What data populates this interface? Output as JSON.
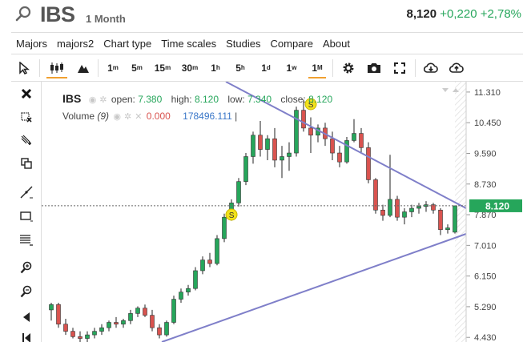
{
  "header": {
    "symbol": "IBS",
    "period": "1 Month",
    "last_price": "8,120",
    "change": "+0,220",
    "change_pct": "+2,78%",
    "up_color": "#26a65b",
    "down_color": "#d9534f"
  },
  "menu": [
    "Majors",
    "majors2",
    "Chart type",
    "Time scales",
    "Studies",
    "Compare",
    "About"
  ],
  "toolbar": {
    "cursor_icon": "cursor-arrow-icon",
    "chart_type_icons": [
      "candlestick-icon",
      "mountain-icon"
    ],
    "timeframes": [
      {
        "base": "1",
        "sup": "m"
      },
      {
        "base": "5",
        "sup": "m"
      },
      {
        "base": "15",
        "sup": "m"
      },
      {
        "base": "30",
        "sup": "m"
      },
      {
        "base": "1",
        "sup": "h"
      },
      {
        "base": "5",
        "sup": "h"
      },
      {
        "base": "1",
        "sup": "d"
      },
      {
        "base": "1",
        "sup": "w"
      },
      {
        "base": "1",
        "sup": "M"
      }
    ],
    "active_timeframe": "1M",
    "right_icons": [
      "settings-gear-icon",
      "camera-icon",
      "fullscreen-icon",
      "download-icon",
      "upload-icon"
    ]
  },
  "left_tools": [
    "close-x-icon",
    "erase-drawings-icon",
    "trend-tools-icon",
    "copy-icon",
    "line-tool-icon",
    "rectangle-tool-icon",
    "horizontal-lines-icon",
    "zoom-in-icon",
    "zoom-out-icon",
    "scroll-left-icon",
    "scroll-left-end-icon"
  ],
  "legend": {
    "symbol": "IBS",
    "open_label": "open:",
    "open": "7.380",
    "high_label": "high:",
    "high": "8.120",
    "low_label": "low:",
    "low": "7.340",
    "close_label": "close:",
    "close": "8.120",
    "volume_label": "Volume",
    "volume_period": "(9)",
    "volume_value0": "0.000",
    "volume_value1": "178496.111",
    "separator": "|"
  },
  "chart_data": {
    "type": "candlestick",
    "price_axis_ticks": [
      "11.310",
      "10.450",
      "9.590",
      "8.730",
      "7.870",
      "7.010",
      "6.150",
      "5.290",
      "4.430"
    ],
    "current_price_label": "8.120",
    "current_price": 8.12,
    "ylim": [
      4.3,
      11.6
    ],
    "marker_label": "S",
    "candles": [
      {
        "o": 5.2,
        "h": 5.4,
        "l": 4.9,
        "c": 5.35
      },
      {
        "o": 5.35,
        "h": 5.4,
        "l": 4.7,
        "c": 4.8
      },
      {
        "o": 4.8,
        "h": 4.95,
        "l": 4.5,
        "c": 4.6
      },
      {
        "o": 4.6,
        "h": 4.7,
        "l": 4.4,
        "c": 4.45
      },
      {
        "o": 4.45,
        "h": 4.6,
        "l": 4.3,
        "c": 4.4
      },
      {
        "o": 4.4,
        "h": 4.6,
        "l": 4.3,
        "c": 4.5
      },
      {
        "o": 4.5,
        "h": 4.7,
        "l": 4.4,
        "c": 4.6
      },
      {
        "o": 4.6,
        "h": 4.8,
        "l": 4.5,
        "c": 4.7
      },
      {
        "o": 4.7,
        "h": 4.9,
        "l": 4.6,
        "c": 4.85
      },
      {
        "o": 4.85,
        "h": 5.0,
        "l": 4.7,
        "c": 4.8
      },
      {
        "o": 4.8,
        "h": 4.95,
        "l": 4.7,
        "c": 4.9
      },
      {
        "o": 4.9,
        "h": 5.2,
        "l": 4.8,
        "c": 5.1
      },
      {
        "o": 5.1,
        "h": 5.3,
        "l": 5.0,
        "c": 5.25
      },
      {
        "o": 5.25,
        "h": 5.35,
        "l": 5.0,
        "c": 5.05
      },
      {
        "o": 5.05,
        "h": 5.2,
        "l": 4.6,
        "c": 4.7
      },
      {
        "o": 4.7,
        "h": 4.8,
        "l": 4.4,
        "c": 4.5
      },
      {
        "o": 4.5,
        "h": 4.9,
        "l": 4.45,
        "c": 4.85
      },
      {
        "o": 4.85,
        "h": 5.6,
        "l": 4.8,
        "c": 5.5
      },
      {
        "o": 5.5,
        "h": 5.8,
        "l": 5.4,
        "c": 5.7
      },
      {
        "o": 5.7,
        "h": 5.9,
        "l": 5.6,
        "c": 5.8
      },
      {
        "o": 5.8,
        "h": 6.4,
        "l": 5.75,
        "c": 6.3
      },
      {
        "o": 6.3,
        "h": 6.7,
        "l": 6.2,
        "c": 6.6
      },
      {
        "o": 6.6,
        "h": 6.8,
        "l": 6.4,
        "c": 6.5
      },
      {
        "o": 6.5,
        "h": 7.3,
        "l": 6.45,
        "c": 7.2
      },
      {
        "o": 7.2,
        "h": 7.9,
        "l": 7.1,
        "c": 7.8
      },
      {
        "o": 7.8,
        "h": 8.3,
        "l": 7.7,
        "c": 8.2
      },
      {
        "o": 8.2,
        "h": 8.9,
        "l": 8.1,
        "c": 8.8
      },
      {
        "o": 8.8,
        "h": 9.6,
        "l": 8.7,
        "c": 9.5
      },
      {
        "o": 9.5,
        "h": 10.2,
        "l": 9.3,
        "c": 10.1
      },
      {
        "o": 10.1,
        "h": 10.5,
        "l": 9.5,
        "c": 9.7
      },
      {
        "o": 9.7,
        "h": 10.1,
        "l": 9.4,
        "c": 10.0
      },
      {
        "o": 10.0,
        "h": 10.3,
        "l": 9.2,
        "c": 9.4
      },
      {
        "o": 9.4,
        "h": 9.8,
        "l": 8.9,
        "c": 9.5
      },
      {
        "o": 9.5,
        "h": 9.9,
        "l": 9.1,
        "c": 9.6
      },
      {
        "o": 9.6,
        "h": 10.9,
        "l": 9.5,
        "c": 10.8
      },
      {
        "o": 10.8,
        "h": 11.1,
        "l": 10.2,
        "c": 10.3
      },
      {
        "o": 10.3,
        "h": 10.6,
        "l": 9.6,
        "c": 10.1
      },
      {
        "o": 10.1,
        "h": 10.4,
        "l": 9.9,
        "c": 10.3
      },
      {
        "o": 10.3,
        "h": 10.45,
        "l": 9.8,
        "c": 10.0
      },
      {
        "o": 10.0,
        "h": 10.2,
        "l": 9.4,
        "c": 9.6
      },
      {
        "o": 9.6,
        "h": 9.8,
        "l": 9.2,
        "c": 9.35
      },
      {
        "o": 9.35,
        "h": 10.05,
        "l": 9.3,
        "c": 9.95
      },
      {
        "o": 9.95,
        "h": 10.55,
        "l": 9.9,
        "c": 10.15
      },
      {
        "o": 10.15,
        "h": 10.3,
        "l": 9.6,
        "c": 9.75
      },
      {
        "o": 9.75,
        "h": 9.9,
        "l": 8.75,
        "c": 8.85
      },
      {
        "o": 8.85,
        "h": 8.9,
        "l": 7.9,
        "c": 8.0
      },
      {
        "o": 8.0,
        "h": 8.15,
        "l": 7.7,
        "c": 7.85
      },
      {
        "o": 7.85,
        "h": 9.55,
        "l": 7.8,
        "c": 8.3
      },
      {
        "o": 8.3,
        "h": 8.4,
        "l": 7.7,
        "c": 7.8
      },
      {
        "o": 7.8,
        "h": 8.05,
        "l": 7.6,
        "c": 7.95
      },
      {
        "o": 7.95,
        "h": 8.15,
        "l": 7.8,
        "c": 8.05
      },
      {
        "o": 8.05,
        "h": 8.2,
        "l": 7.9,
        "c": 8.1
      },
      {
        "o": 8.1,
        "h": 8.25,
        "l": 7.95,
        "c": 8.15
      },
      {
        "o": 8.15,
        "h": 8.2,
        "l": 7.9,
        "c": 8.0
      },
      {
        "o": 8.0,
        "h": 8.05,
        "l": 7.3,
        "c": 7.45
      },
      {
        "o": 7.45,
        "h": 7.6,
        "l": 7.34,
        "c": 7.5
      },
      {
        "o": 7.38,
        "h": 8.12,
        "l": 7.34,
        "c": 8.12
      }
    ],
    "markers": [
      {
        "index": 25,
        "label": "S"
      },
      {
        "index": 36,
        "label": "S"
      }
    ]
  }
}
